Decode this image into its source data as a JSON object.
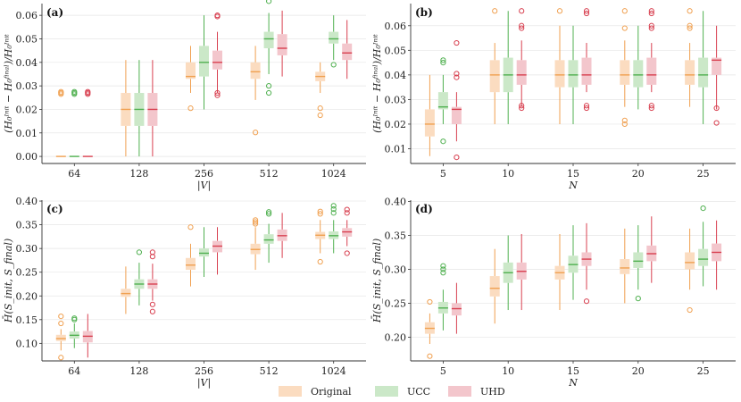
{
  "colors": {
    "Original": "#f0a050",
    "UCC": "#50b050",
    "UHD": "#d84050",
    "Original_fill": "#fbdcc0",
    "UCC_fill": "#cbe8c8",
    "UHD_fill": "#f3c6cc"
  },
  "legend": [
    "Original",
    "UCC",
    "UHD"
  ],
  "chart_data": [
    {
      "type": "boxplot",
      "panel": "(a)",
      "xlabel": "|V|",
      "ylabel": "(H₀ᴵⁿⁱᵗ − H₀ᶠⁱⁿᵃˡ)/H₀ᴵⁿⁱᵗ",
      "ylim": [
        -0.003,
        0.065
      ],
      "yticks": [
        0.0,
        0.01,
        0.02,
        0.03,
        0.04,
        0.05,
        0.06
      ],
      "ytick_labels": [
        "0.00",
        "0.01",
        "0.02",
        "0.03",
        "0.04",
        "0.05",
        "0.06"
      ],
      "categories": [
        "64",
        "128",
        "256",
        "512",
        "1024"
      ],
      "series": [
        {
          "name": "Original",
          "boxes": [
            {
              "whislo": 0,
              "q1": 0,
              "med": 0,
              "q3": 0,
              "whishi": 0,
              "fliers": [
                0.0265,
                0.027,
                0.0275
              ]
            },
            {
              "whislo": 0,
              "q1": 0.013,
              "med": 0.02,
              "q3": 0.027,
              "whishi": 0.041,
              "fliers": []
            },
            {
              "whislo": 0.027,
              "q1": 0.033,
              "med": 0.034,
              "q3": 0.04,
              "whishi": 0.047,
              "fliers": [
                0.0205
              ]
            },
            {
              "whislo": 0.024,
              "q1": 0.033,
              "med": 0.036,
              "q3": 0.04,
              "whishi": 0.047,
              "fliers": [
                0.0102
              ]
            },
            {
              "whislo": 0.027,
              "q1": 0.032,
              "med": 0.034,
              "q3": 0.036,
              "whishi": 0.04,
              "fliers": [
                0.0175,
                0.0205
              ]
            }
          ]
        },
        {
          "name": "UCC",
          "boxes": [
            {
              "whislo": 0,
              "q1": 0,
              "med": 0,
              "q3": 0,
              "whishi": 0,
              "fliers": [
                0.0265,
                0.027,
                0.0275
              ]
            },
            {
              "whislo": 0,
              "q1": 0.013,
              "med": 0.02,
              "q3": 0.027,
              "whishi": 0.041,
              "fliers": []
            },
            {
              "whislo": 0.02,
              "q1": 0.034,
              "med": 0.04,
              "q3": 0.047,
              "whishi": 0.06,
              "fliers": []
            },
            {
              "whislo": 0.035,
              "q1": 0.046,
              "med": 0.05,
              "q3": 0.053,
              "whishi": 0.061,
              "fliers": [
                0.027,
                0.03,
                0.066
              ]
            },
            {
              "whislo": 0.041,
              "q1": 0.048,
              "med": 0.05,
              "q3": 0.053,
              "whishi": 0.06,
              "fliers": [
                0.039
              ]
            }
          ]
        },
        {
          "name": "UHD",
          "boxes": [
            {
              "whislo": 0,
              "q1": 0,
              "med": 0,
              "q3": 0,
              "whishi": 0,
              "fliers": [
                0.0265,
                0.027,
                0.0275
              ]
            },
            {
              "whislo": 0,
              "q1": 0.013,
              "med": 0.02,
              "q3": 0.027,
              "whishi": 0.041,
              "fliers": []
            },
            {
              "whislo": 0.027,
              "q1": 0.037,
              "med": 0.04,
              "q3": 0.045,
              "whishi": 0.053,
              "fliers": [
                0.026,
                0.027,
                0.0595,
                0.06
              ]
            },
            {
              "whislo": 0.034,
              "q1": 0.043,
              "med": 0.046,
              "q3": 0.052,
              "whishi": 0.062,
              "fliers": []
            },
            {
              "whislo": 0.033,
              "q1": 0.041,
              "med": 0.044,
              "q3": 0.048,
              "whishi": 0.058,
              "fliers": []
            }
          ]
        }
      ]
    },
    {
      "type": "boxplot",
      "panel": "(b)",
      "xlabel": "N",
      "ylabel": "(H₀ᴵⁿⁱᵗ − H₀ᶠⁱⁿᵃˡ)/H₀ᴵⁿⁱᵗ",
      "ylim": [
        0.004,
        0.069
      ],
      "yticks": [
        0.01,
        0.02,
        0.03,
        0.04,
        0.05,
        0.06
      ],
      "ytick_labels": [
        "0.01",
        "0.02",
        "0.03",
        "0.04",
        "0.05",
        "0.06"
      ],
      "categories": [
        "5",
        "10",
        "15",
        "20",
        "25"
      ],
      "series": [
        {
          "name": "Original",
          "boxes": [
            {
              "whislo": 0.007,
              "q1": 0.015,
              "med": 0.02,
              "q3": 0.026,
              "whishi": 0.04,
              "fliers": []
            },
            {
              "whislo": 0.02,
              "q1": 0.033,
              "med": 0.04,
              "q3": 0.046,
              "whishi": 0.053,
              "fliers": [
                0.066
              ]
            },
            {
              "whislo": 0.02,
              "q1": 0.035,
              "med": 0.04,
              "q3": 0.046,
              "whishi": 0.06,
              "fliers": [
                0.066
              ]
            },
            {
              "whislo": 0.027,
              "q1": 0.036,
              "med": 0.04,
              "q3": 0.046,
              "whishi": 0.054,
              "fliers": [
                0.02,
                0.0215,
                0.059,
                0.066
              ]
            },
            {
              "whislo": 0.027,
              "q1": 0.036,
              "med": 0.04,
              "q3": 0.046,
              "whishi": 0.053,
              "fliers": [
                0.059,
                0.06,
                0.066
              ]
            }
          ]
        },
        {
          "name": "UCC",
          "boxes": [
            {
              "whislo": 0.02,
              "q1": 0.026,
              "med": 0.027,
              "q3": 0.033,
              "whishi": 0.04,
              "fliers": [
                0.013,
                0.045,
                0.046
              ]
            },
            {
              "whislo": 0.02,
              "q1": 0.033,
              "med": 0.04,
              "q3": 0.047,
              "whishi": 0.066,
              "fliers": []
            },
            {
              "whislo": 0.02,
              "q1": 0.035,
              "med": 0.04,
              "q3": 0.046,
              "whishi": 0.06,
              "fliers": []
            },
            {
              "whislo": 0.026,
              "q1": 0.035,
              "med": 0.04,
              "q3": 0.046,
              "whishi": 0.06,
              "fliers": []
            },
            {
              "whislo": 0.02,
              "q1": 0.035,
              "med": 0.04,
              "q3": 0.047,
              "whishi": 0.066,
              "fliers": []
            }
          ]
        },
        {
          "name": "UHD",
          "boxes": [
            {
              "whislo": 0.013,
              "q1": 0.02,
              "med": 0.026,
              "q3": 0.027,
              "whishi": 0.033,
              "fliers": [
                0.0065,
                0.039,
                0.0405,
                0.053
              ]
            },
            {
              "whislo": 0.027,
              "q1": 0.036,
              "med": 0.04,
              "q3": 0.046,
              "whishi": 0.054,
              "fliers": [
                0.0265,
                0.0275,
                0.059,
                0.06,
                0.066
              ]
            },
            {
              "whislo": 0.033,
              "q1": 0.036,
              "med": 0.04,
              "q3": 0.047,
              "whishi": 0.053,
              "fliers": [
                0.0265,
                0.0275,
                0.065,
                0.066
              ]
            },
            {
              "whislo": 0.033,
              "q1": 0.036,
              "med": 0.04,
              "q3": 0.047,
              "whishi": 0.053,
              "fliers": [
                0.0265,
                0.0275,
                0.059,
                0.06,
                0.065,
                0.066
              ]
            },
            {
              "whislo": 0.026,
              "q1": 0.04,
              "med": 0.046,
              "q3": 0.047,
              "whishi": 0.06,
              "fliers": [
                0.0205,
                0.0265
              ]
            }
          ]
        }
      ]
    },
    {
      "type": "boxplot",
      "panel": "(c)",
      "xlabel": "|V|",
      "ylabel": "H̄(S_init, S_final)",
      "ylim": [
        0.063,
        0.402
      ],
      "yticks": [
        0.1,
        0.15,
        0.2,
        0.25,
        0.3,
        0.35,
        0.4
      ],
      "ytick_labels": [
        "0.10",
        "0.15",
        "0.20",
        "0.25",
        "0.30",
        "0.35",
        "0.40"
      ],
      "categories": [
        "64",
        "128",
        "256",
        "512",
        "1024"
      ],
      "series": [
        {
          "name": "Original",
          "boxes": [
            {
              "whislo": 0.085,
              "q1": 0.105,
              "med": 0.11,
              "q3": 0.118,
              "whishi": 0.13,
              "fliers": [
                0.07,
                0.142,
                0.157
              ]
            },
            {
              "whislo": 0.162,
              "q1": 0.198,
              "med": 0.205,
              "q3": 0.215,
              "whishi": 0.262,
              "fliers": []
            },
            {
              "whislo": 0.22,
              "q1": 0.255,
              "med": 0.265,
              "q3": 0.28,
              "whishi": 0.31,
              "fliers": [
                0.345
              ]
            },
            {
              "whislo": 0.255,
              "q1": 0.288,
              "med": 0.298,
              "q3": 0.31,
              "whishi": 0.345,
              "fliers": [
                0.352,
                0.356,
                0.36
              ]
            },
            {
              "whislo": 0.29,
              "q1": 0.32,
              "med": 0.328,
              "q3": 0.335,
              "whishi": 0.36,
              "fliers": [
                0.272,
                0.373,
                0.378
              ]
            }
          ]
        },
        {
          "name": "UCC",
          "boxes": [
            {
              "whislo": 0.09,
              "q1": 0.11,
              "med": 0.117,
              "q3": 0.125,
              "whishi": 0.142,
              "fliers": [
                0.15,
                0.153
              ]
            },
            {
              "whislo": 0.18,
              "q1": 0.215,
              "med": 0.225,
              "q3": 0.235,
              "whishi": 0.27,
              "fliers": [
                0.292
              ]
            },
            {
              "whislo": 0.24,
              "q1": 0.283,
              "med": 0.29,
              "q3": 0.3,
              "whishi": 0.345,
              "fliers": []
            },
            {
              "whislo": 0.27,
              "q1": 0.31,
              "med": 0.318,
              "q3": 0.33,
              "whishi": 0.352,
              "fliers": [
                0.373,
                0.377
              ]
            },
            {
              "whislo": 0.29,
              "q1": 0.32,
              "med": 0.327,
              "q3": 0.336,
              "whishi": 0.36,
              "fliers": [
                0.375,
                0.383,
                0.39
              ]
            }
          ]
        },
        {
          "name": "UHD",
          "boxes": [
            {
              "whislo": 0.07,
              "q1": 0.102,
              "med": 0.115,
              "q3": 0.126,
              "whishi": 0.162,
              "fliers": []
            },
            {
              "whislo": 0.19,
              "q1": 0.215,
              "med": 0.225,
              "q3": 0.235,
              "whishi": 0.268,
              "fliers": [
                0.167,
                0.182,
                0.283,
                0.292
              ]
            },
            {
              "whislo": 0.245,
              "q1": 0.292,
              "med": 0.305,
              "q3": 0.316,
              "whishi": 0.345,
              "fliers": []
            },
            {
              "whislo": 0.28,
              "q1": 0.316,
              "med": 0.327,
              "q3": 0.34,
              "whishi": 0.375,
              "fliers": []
            },
            {
              "whislo": 0.305,
              "q1": 0.325,
              "med": 0.335,
              "q3": 0.343,
              "whishi": 0.36,
              "fliers": [
                0.29,
                0.375,
                0.382
              ]
            }
          ]
        }
      ]
    },
    {
      "type": "boxplot",
      "panel": "(d)",
      "xlabel": "N",
      "ylabel": "H̄(S_init, S_final)",
      "ylim": [
        0.165,
        0.402
      ],
      "yticks": [
        0.2,
        0.25,
        0.3,
        0.35,
        0.4
      ],
      "ytick_labels": [
        "0.20",
        "0.25",
        "0.30",
        "0.35",
        "0.40"
      ],
      "categories": [
        "5",
        "10",
        "15",
        "20",
        "25"
      ],
      "series": [
        {
          "name": "Original",
          "boxes": [
            {
              "whislo": 0.19,
              "q1": 0.205,
              "med": 0.213,
              "q3": 0.222,
              "whishi": 0.235,
              "fliers": [
                0.172,
                0.252
              ]
            },
            {
              "whislo": 0.22,
              "q1": 0.26,
              "med": 0.272,
              "q3": 0.29,
              "whishi": 0.33,
              "fliers": []
            },
            {
              "whislo": 0.24,
              "q1": 0.285,
              "med": 0.295,
              "q3": 0.305,
              "whishi": 0.352,
              "fliers": []
            },
            {
              "whislo": 0.25,
              "q1": 0.293,
              "med": 0.302,
              "q3": 0.315,
              "whishi": 0.36,
              "fliers": []
            },
            {
              "whislo": 0.27,
              "q1": 0.3,
              "med": 0.31,
              "q3": 0.325,
              "whishi": 0.36,
              "fliers": [
                0.24
              ]
            }
          ]
        },
        {
          "name": "UCC",
          "boxes": [
            {
              "whislo": 0.21,
              "q1": 0.235,
              "med": 0.243,
              "q3": 0.252,
              "whishi": 0.27,
              "fliers": [
                0.295,
                0.3,
                0.305
              ]
            },
            {
              "whislo": 0.24,
              "q1": 0.28,
              "med": 0.295,
              "q3": 0.31,
              "whishi": 0.35,
              "fliers": []
            },
            {
              "whislo": 0.255,
              "q1": 0.295,
              "med": 0.307,
              "q3": 0.32,
              "whishi": 0.365,
              "fliers": []
            },
            {
              "whislo": 0.27,
              "q1": 0.302,
              "med": 0.312,
              "q3": 0.325,
              "whishi": 0.365,
              "fliers": [
                0.257
              ]
            },
            {
              "whislo": 0.275,
              "q1": 0.305,
              "med": 0.315,
              "q3": 0.33,
              "whishi": 0.37,
              "fliers": [
                0.39
              ]
            }
          ]
        },
        {
          "name": "UHD",
          "boxes": [
            {
              "whislo": 0.205,
              "q1": 0.232,
              "med": 0.242,
              "q3": 0.25,
              "whishi": 0.28,
              "fliers": []
            },
            {
              "whislo": 0.24,
              "q1": 0.285,
              "med": 0.297,
              "q3": 0.31,
              "whishi": 0.352,
              "fliers": []
            },
            {
              "whislo": 0.27,
              "q1": 0.305,
              "med": 0.315,
              "q3": 0.325,
              "whishi": 0.368,
              "fliers": [
                0.253
              ]
            },
            {
              "whislo": 0.28,
              "q1": 0.312,
              "med": 0.323,
              "q3": 0.335,
              "whishi": 0.378,
              "fliers": []
            },
            {
              "whislo": 0.27,
              "q1": 0.312,
              "med": 0.325,
              "q3": 0.338,
              "whishi": 0.372,
              "fliers": []
            }
          ]
        }
      ]
    }
  ]
}
